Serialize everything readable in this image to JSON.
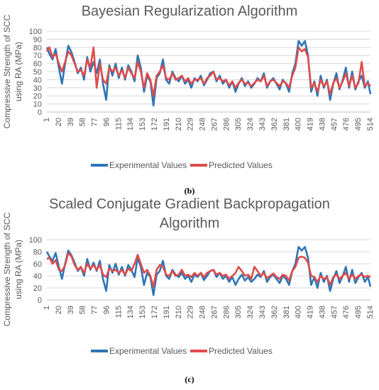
{
  "colors": {
    "experimental": "#2E75B6",
    "predicted": "#E04B4B",
    "grid": "#D9D9D9",
    "text": "#595959"
  },
  "chart_data": [
    {
      "panel_label": "(b)",
      "type": "line",
      "title": "Bayesian Regularization Algorithm",
      "title_lines": [
        "Bayesian Regularization Algorithm"
      ],
      "xlabel": "",
      "ylabel": "Compressive Strength of SCC using RA (MPa)",
      "ylabel_lines": [
        "Compressive Strength of SCC",
        "using RA (MPa)"
      ],
      "ylim": [
        0,
        100
      ],
      "yticks": [
        0,
        10,
        20,
        30,
        40,
        50,
        60,
        70,
        80,
        90,
        100
      ],
      "xlim": [
        1,
        514
      ],
      "xticks": [
        1,
        20,
        39,
        58,
        77,
        96,
        115,
        134,
        153,
        172,
        191,
        210,
        229,
        248,
        267,
        286,
        305,
        324,
        343,
        362,
        381,
        400,
        419,
        438,
        457,
        476,
        495,
        514
      ],
      "grid": true,
      "legend_position": "bottom",
      "series": [
        {
          "name": "Experimental Values",
          "x": [
            1,
            5,
            10,
            15,
            20,
            25,
            30,
            35,
            40,
            45,
            50,
            55,
            60,
            65,
            70,
            75,
            80,
            85,
            90,
            95,
            100,
            105,
            110,
            115,
            120,
            125,
            130,
            135,
            140,
            145,
            150,
            155,
            160,
            165,
            170,
            175,
            180,
            185,
            190,
            195,
            200,
            205,
            210,
            215,
            220,
            225,
            230,
            235,
            240,
            245,
            250,
            255,
            260,
            265,
            270,
            275,
            280,
            285,
            290,
            295,
            300,
            305,
            310,
            315,
            320,
            325,
            330,
            335,
            340,
            345,
            350,
            355,
            360,
            365,
            370,
            375,
            380,
            385,
            390,
            395,
            400,
            405,
            410,
            415,
            420,
            425,
            430,
            435,
            440,
            445,
            450,
            455,
            460,
            465,
            470,
            475,
            480,
            485,
            490,
            495,
            500,
            505,
            510,
            514
          ],
          "y": [
            80,
            72,
            65,
            78,
            55,
            35,
            60,
            82,
            74,
            62,
            48,
            55,
            40,
            68,
            50,
            62,
            48,
            65,
            35,
            15,
            58,
            45,
            60,
            42,
            55,
            40,
            58,
            50,
            38,
            70,
            55,
            25,
            45,
            38,
            8,
            42,
            48,
            65,
            40,
            35,
            50,
            42,
            38,
            45,
            35,
            40,
            30,
            42,
            38,
            45,
            33,
            40,
            48,
            50,
            38,
            45,
            35,
            40,
            30,
            38,
            25,
            35,
            42,
            32,
            38,
            30,
            35,
            42,
            38,
            48,
            30,
            38,
            42,
            35,
            28,
            40,
            35,
            25,
            48,
            60,
            88,
            82,
            88,
            70,
            25,
            38,
            20,
            45,
            30,
            40,
            15,
            35,
            48,
            28,
            40,
            55,
            30,
            50,
            28,
            38,
            45,
            30,
            38,
            22
          ]
        },
        {
          "name": "Predicted Values",
          "x": [
            1,
            5,
            10,
            15,
            20,
            25,
            30,
            35,
            40,
            45,
            50,
            55,
            60,
            65,
            70,
            75,
            80,
            85,
            90,
            95,
            100,
            105,
            110,
            115,
            120,
            125,
            130,
            135,
            140,
            145,
            150,
            155,
            160,
            165,
            170,
            175,
            180,
            185,
            190,
            195,
            200,
            205,
            210,
            215,
            220,
            225,
            230,
            235,
            240,
            245,
            250,
            255,
            260,
            265,
            270,
            275,
            280,
            285,
            290,
            295,
            300,
            305,
            310,
            315,
            320,
            325,
            330,
            335,
            340,
            345,
            350,
            355,
            360,
            365,
            370,
            375,
            380,
            385,
            390,
            395,
            400,
            405,
            410,
            415,
            420,
            425,
            430,
            435,
            440,
            445,
            450,
            455,
            460,
            465,
            470,
            475,
            480,
            485,
            490,
            495,
            500,
            505,
            510,
            514
          ],
          "y": [
            75,
            80,
            68,
            72,
            60,
            50,
            62,
            75,
            70,
            60,
            50,
            52,
            45,
            65,
            55,
            80,
            30,
            60,
            40,
            35,
            55,
            50,
            55,
            45,
            52,
            42,
            55,
            48,
            42,
            62,
            50,
            30,
            48,
            40,
            20,
            45,
            50,
            58,
            42,
            40,
            48,
            40,
            42,
            45,
            38,
            42,
            35,
            40,
            40,
            42,
            35,
            42,
            45,
            50,
            40,
            42,
            38,
            40,
            33,
            38,
            30,
            36,
            40,
            35,
            36,
            32,
            36,
            40,
            38,
            45,
            32,
            38,
            40,
            36,
            32,
            38,
            36,
            30,
            45,
            55,
            80,
            75,
            78,
            68,
            30,
            36,
            25,
            40,
            32,
            38,
            22,
            36,
            42,
            30,
            38,
            48,
            32,
            45,
            30,
            36,
            62,
            32,
            36,
            32
          ]
        }
      ]
    },
    {
      "panel_label": "(c)",
      "type": "line",
      "title": "Scaled Conjugate Gradient Backpropagation Algorithm",
      "title_lines": [
        "Scaled Conjugate Gradient Backpropagation",
        "Algorithm"
      ],
      "xlabel": "",
      "ylabel": "Compressive Strength of SCC using RA (MPa)",
      "ylabel_lines": [
        "Compressive Strength of SCC",
        "using RA (MPa)"
      ],
      "ylim": [
        0,
        100
      ],
      "yticks": [
        0,
        20,
        40,
        60,
        80,
        100
      ],
      "xlim": [
        1,
        514
      ],
      "xticks": [
        1,
        20,
        39,
        58,
        77,
        96,
        115,
        134,
        153,
        172,
        191,
        210,
        229,
        248,
        267,
        286,
        305,
        324,
        343,
        362,
        381,
        400,
        419,
        438,
        457,
        476,
        495,
        514
      ],
      "grid": true,
      "legend_position": "bottom",
      "series": [
        {
          "name": "Experimental Values",
          "x": [
            1,
            5,
            10,
            15,
            20,
            25,
            30,
            35,
            40,
            45,
            50,
            55,
            60,
            65,
            70,
            75,
            80,
            85,
            90,
            95,
            100,
            105,
            110,
            115,
            120,
            125,
            130,
            135,
            140,
            145,
            150,
            155,
            160,
            165,
            170,
            175,
            180,
            185,
            190,
            195,
            200,
            205,
            210,
            215,
            220,
            225,
            230,
            235,
            240,
            245,
            250,
            255,
            260,
            265,
            270,
            275,
            280,
            285,
            290,
            295,
            300,
            305,
            310,
            315,
            320,
            325,
            330,
            335,
            340,
            345,
            350,
            355,
            360,
            365,
            370,
            375,
            380,
            385,
            390,
            395,
            400,
            405,
            410,
            415,
            420,
            425,
            430,
            435,
            440,
            445,
            450,
            455,
            460,
            465,
            470,
            475,
            480,
            485,
            490,
            495,
            500,
            505,
            510,
            514
          ],
          "y": [
            80,
            72,
            65,
            78,
            55,
            35,
            60,
            82,
            74,
            62,
            48,
            55,
            40,
            68,
            50,
            62,
            48,
            65,
            35,
            15,
            58,
            45,
            60,
            42,
            55,
            40,
            58,
            50,
            38,
            70,
            55,
            25,
            45,
            38,
            8,
            42,
            48,
            65,
            40,
            35,
            50,
            42,
            38,
            45,
            35,
            40,
            30,
            42,
            38,
            45,
            33,
            40,
            48,
            50,
            38,
            45,
            35,
            40,
            30,
            38,
            25,
            35,
            42,
            32,
            38,
            30,
            35,
            42,
            38,
            48,
            30,
            38,
            42,
            35,
            28,
            40,
            35,
            25,
            48,
            60,
            88,
            82,
            88,
            70,
            25,
            38,
            20,
            45,
            30,
            40,
            15,
            35,
            48,
            28,
            40,
            55,
            30,
            50,
            28,
            38,
            45,
            30,
            38,
            22
          ]
        },
        {
          "name": "Predicted Values",
          "x": [
            1,
            5,
            10,
            15,
            20,
            25,
            30,
            35,
            40,
            45,
            50,
            55,
            60,
            65,
            70,
            75,
            80,
            85,
            90,
            95,
            100,
            105,
            110,
            115,
            120,
            125,
            130,
            135,
            140,
            145,
            150,
            155,
            160,
            165,
            170,
            175,
            180,
            185,
            190,
            195,
            200,
            205,
            210,
            215,
            220,
            225,
            230,
            235,
            240,
            245,
            250,
            255,
            260,
            265,
            270,
            275,
            280,
            285,
            290,
            295,
            300,
            305,
            310,
            315,
            320,
            325,
            330,
            335,
            340,
            345,
            350,
            355,
            360,
            365,
            370,
            375,
            380,
            385,
            390,
            395,
            400,
            405,
            410,
            415,
            420,
            425,
            430,
            435,
            440,
            445,
            450,
            455,
            460,
            465,
            470,
            475,
            480,
            485,
            490,
            495,
            500,
            505,
            510,
            514
          ],
          "y": [
            68,
            70,
            60,
            66,
            50,
            48,
            58,
            78,
            72,
            58,
            50,
            55,
            45,
            60,
            52,
            58,
            50,
            58,
            42,
            38,
            52,
            48,
            50,
            45,
            50,
            42,
            52,
            48,
            60,
            75,
            60,
            45,
            50,
            40,
            22,
            50,
            58,
            55,
            42,
            40,
            48,
            40,
            42,
            50,
            40,
            42,
            38,
            45,
            40,
            45,
            38,
            45,
            48,
            50,
            42,
            45,
            40,
            42,
            35,
            40,
            45,
            55,
            48,
            40,
            42,
            35,
            55,
            48,
            40,
            45,
            36,
            40,
            44,
            38,
            35,
            42,
            40,
            32,
            48,
            55,
            70,
            72,
            70,
            62,
            40,
            38,
            30,
            40,
            35,
            38,
            25,
            38,
            42,
            35,
            40,
            45,
            35,
            42,
            35,
            40,
            42,
            38,
            40,
            38
          ]
        }
      ]
    }
  ]
}
